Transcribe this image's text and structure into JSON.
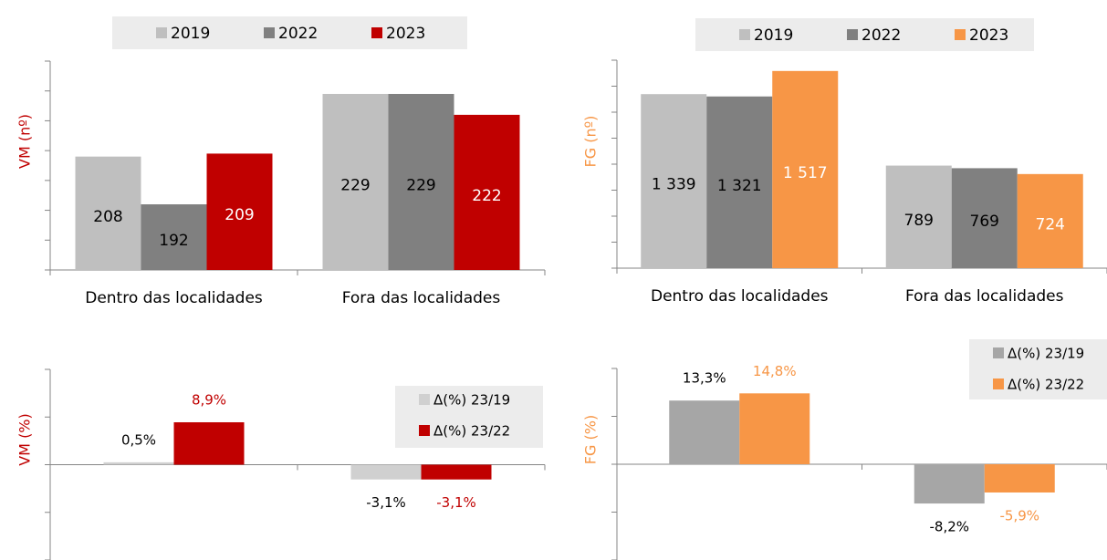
{
  "chart_data": [
    {
      "type": "bar",
      "y_label": "VM (nº)",
      "categories": [
        "Dentro das localidades",
        "Fora das localidades"
      ],
      "series": [
        {
          "name": "2019",
          "color": "#bfbfbf",
          "values": [
            208,
            229
          ]
        },
        {
          "name": "2022",
          "color": "#808080",
          "values": [
            192,
            229
          ]
        },
        {
          "name": "2023",
          "color": "#c00000",
          "values": [
            209,
            222
          ]
        }
      ],
      "ylim": [
        170,
        240
      ],
      "yticks": [
        170,
        180,
        190,
        200,
        210,
        220,
        230,
        240
      ],
      "legend": "top"
    },
    {
      "type": "bar",
      "y_label": "FG (nº)",
      "categories": [
        "Dentro das localidades",
        "Fora das localidades"
      ],
      "series": [
        {
          "name": "2019",
          "color": "#bfbfbf",
          "values": [
            1339,
            789
          ],
          "value_labels": [
            "1 339",
            "789"
          ]
        },
        {
          "name": "2022",
          "color": "#808080",
          "values": [
            1321,
            769
          ],
          "value_labels": [
            "1 321",
            "769"
          ]
        },
        {
          "name": "2023",
          "color": "#f79646",
          "values": [
            1517,
            724
          ],
          "value_labels": [
            "1 517",
            "724"
          ]
        }
      ],
      "ylim": [
        0,
        1600
      ],
      "yticks": [
        0,
        200,
        400,
        600,
        800,
        1000,
        1200,
        1400,
        1600
      ],
      "legend": "top"
    },
    {
      "type": "bar",
      "y_label": "VM (%)",
      "categories": [
        null,
        null
      ],
      "series": [
        {
          "name": "Δ(%) 23/19",
          "color": "#d0d0d0",
          "values": [
            0.5,
            -3.1
          ],
          "value_labels": [
            "0,5%",
            "-3,1%"
          ]
        },
        {
          "name": "Δ(%) 23/22",
          "color": "#c00000",
          "values": [
            8.9,
            -3.1
          ],
          "value_labels": [
            "8,9%",
            "-3,1%"
          ]
        }
      ],
      "ylim": [
        -20,
        20
      ],
      "yticks": [
        -20,
        -10,
        0,
        10,
        20
      ],
      "legend": "upper right"
    },
    {
      "type": "bar",
      "y_label": "FG (%)",
      "categories": [
        null,
        null
      ],
      "series": [
        {
          "name": "Δ(%) 23/19",
          "color": "#a6a6a6",
          "values": [
            13.3,
            -8.2
          ],
          "value_labels": [
            "13,3%",
            "-8,2%"
          ]
        },
        {
          "name": "Δ(%) 23/22",
          "color": "#f79646",
          "values": [
            14.8,
            -5.9
          ],
          "value_labels": [
            "14,8%",
            "-5,9%"
          ]
        }
      ],
      "ylim": [
        -20,
        20
      ],
      "yticks": [
        -20,
        -10,
        0,
        10,
        20
      ],
      "legend": "upper right"
    }
  ]
}
